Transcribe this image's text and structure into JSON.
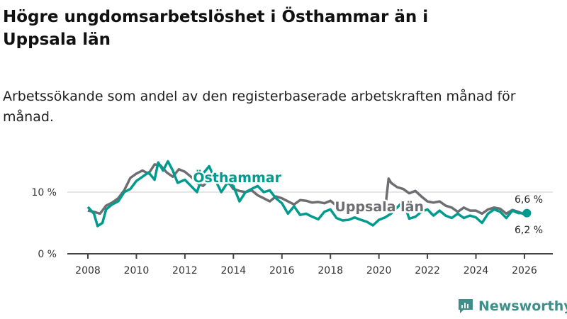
{
  "title": "Högre ungdomsarbetslöshet i Östhammar än i Uppsala län",
  "subtitle": "Arbetssökande som andel av den registerbaserade arbetskraften månad för månad.",
  "brand": "Newsworthy",
  "colors": {
    "osthammar": "#009b8f",
    "uppsala": "#6e6d72",
    "grid": "#dddddd",
    "axis": "#444444"
  },
  "chart_data": {
    "type": "line",
    "title": "Högre ungdomsarbetslöshet i Östhammar än i Uppsala län",
    "xlabel": "",
    "ylabel": "",
    "xlim": [
      2007.6,
      2026.8
    ],
    "ylim": [
      0,
      15
    ],
    "y_ticks": [
      {
        "value": 0,
        "label": "0 %"
      },
      {
        "value": 10,
        "label": "10 %"
      }
    ],
    "x_ticks": [
      {
        "value": 2008,
        "label": "2008"
      },
      {
        "value": 2010,
        "label": "2010"
      },
      {
        "value": 2012,
        "label": "2012"
      },
      {
        "value": 2014,
        "label": "2014"
      },
      {
        "value": 2016,
        "label": "2016"
      },
      {
        "value": 2018,
        "label": "2018"
      },
      {
        "value": 2020,
        "label": "2020"
      },
      {
        "value": 2022,
        "label": "2022"
      },
      {
        "value": 2024,
        "label": "2024"
      },
      {
        "value": 2026,
        "label": "2026"
      }
    ],
    "series": [
      {
        "name": "Uppsala län",
        "label": "Uppsala län",
        "end_label": "6,2 %",
        "x": [
          2008,
          2008.25,
          2008.5,
          2008.75,
          2009,
          2009.25,
          2009.5,
          2009.75,
          2010,
          2010.25,
          2010.5,
          2010.75,
          2011,
          2011.25,
          2011.5,
          2011.75,
          2012,
          2012.25,
          2012.5,
          2012.75,
          2013,
          2013.25,
          2013.5,
          2013.75,
          2014,
          2014.25,
          2014.5,
          2014.75,
          2015,
          2015.25,
          2015.5,
          2015.75,
          2016,
          2016.25,
          2016.5,
          2016.75,
          2017,
          2017.25,
          2017.5,
          2017.75,
          2018,
          2018.25,
          2018.5,
          2018.75,
          2019,
          2019.25,
          2019.5,
          2019.75,
          2020,
          2020.25,
          2020.4,
          2020.5,
          2020.75,
          2021,
          2021.25,
          2021.5,
          2021.75,
          2022,
          2022.25,
          2022.5,
          2022.75,
          2023,
          2023.25,
          2023.5,
          2023.75,
          2024,
          2024.25,
          2024.5,
          2024.75,
          2025,
          2025.25,
          2025.5,
          2025.75,
          2026.1
        ],
        "y": [
          7.0,
          6.8,
          6.5,
          7.8,
          8.3,
          9.0,
          10.3,
          12.3,
          13.0,
          13.5,
          13.0,
          14.5,
          14.3,
          13.2,
          12.5,
          13.7,
          13.3,
          12.5,
          11.5,
          11.0,
          12.0,
          12.5,
          12.0,
          11.8,
          10.5,
          10.2,
          10.0,
          10.3,
          9.5,
          9.0,
          8.5,
          9.3,
          9.0,
          8.5,
          8.0,
          8.7,
          8.6,
          8.3,
          8.4,
          8.2,
          8.6,
          7.8,
          7.3,
          7.2,
          7.0,
          7.1,
          6.9,
          7.0,
          7.0,
          7.0,
          12.2,
          11.5,
          10.8,
          10.5,
          9.8,
          10.2,
          9.3,
          8.5,
          8.3,
          8.5,
          7.8,
          7.5,
          6.8,
          7.5,
          7.0,
          7.0,
          6.5,
          7.2,
          7.5,
          7.3,
          6.5,
          7.1,
          6.8,
          6.2
        ]
      },
      {
        "name": "Östhammar",
        "label": "Östhammar",
        "end_label": "6,6 %",
        "x": [
          2008,
          2008.25,
          2008.4,
          2008.6,
          2008.75,
          2009,
          2009.25,
          2009.5,
          2009.75,
          2010,
          2010.25,
          2010.5,
          2010.75,
          2010.9,
          2011.1,
          2011.3,
          2011.5,
          2011.7,
          2012,
          2012.25,
          2012.5,
          2012.75,
          2013,
          2013.25,
          2013.5,
          2013.75,
          2014,
          2014.25,
          2014.5,
          2014.75,
          2015,
          2015.25,
          2015.5,
          2015.75,
          2016,
          2016.25,
          2016.5,
          2016.75,
          2017,
          2017.25,
          2017.5,
          2017.75,
          2018,
          2018.25,
          2018.5,
          2018.75,
          2019,
          2019.25,
          2019.5,
          2019.75,
          2020,
          2020.25,
          2020.5,
          2020.75,
          2021,
          2021.25,
          2021.5,
          2021.75,
          2022,
          2022.25,
          2022.5,
          2022.75,
          2023,
          2023.25,
          2023.5,
          2023.75,
          2024,
          2024.25,
          2024.5,
          2024.75,
          2025,
          2025.25,
          2025.5,
          2025.75,
          2026.1
        ],
        "y": [
          7.6,
          6.5,
          4.5,
          5.0,
          7.2,
          8.0,
          8.5,
          10.0,
          10.5,
          11.8,
          12.5,
          13.2,
          12.0,
          14.8,
          13.5,
          15.0,
          13.5,
          11.5,
          12.0,
          11.0,
          10.0,
          13.0,
          14.2,
          12.0,
          10.0,
          11.5,
          11.0,
          8.5,
          10.0,
          10.5,
          11.0,
          10.0,
          10.3,
          9.0,
          8.2,
          6.5,
          7.7,
          6.3,
          6.5,
          6.0,
          5.6,
          6.8,
          7.2,
          5.8,
          5.4,
          5.5,
          5.9,
          5.5,
          5.2,
          4.6,
          5.5,
          5.9,
          6.5,
          7.5,
          8.5,
          5.7,
          6.0,
          6.8,
          7.2,
          6.2,
          7.0,
          6.2,
          5.8,
          6.5,
          5.8,
          6.2,
          5.9,
          5.0,
          6.5,
          7.2,
          6.8,
          5.8,
          7.0,
          6.6,
          6.6
        ]
      }
    ]
  }
}
